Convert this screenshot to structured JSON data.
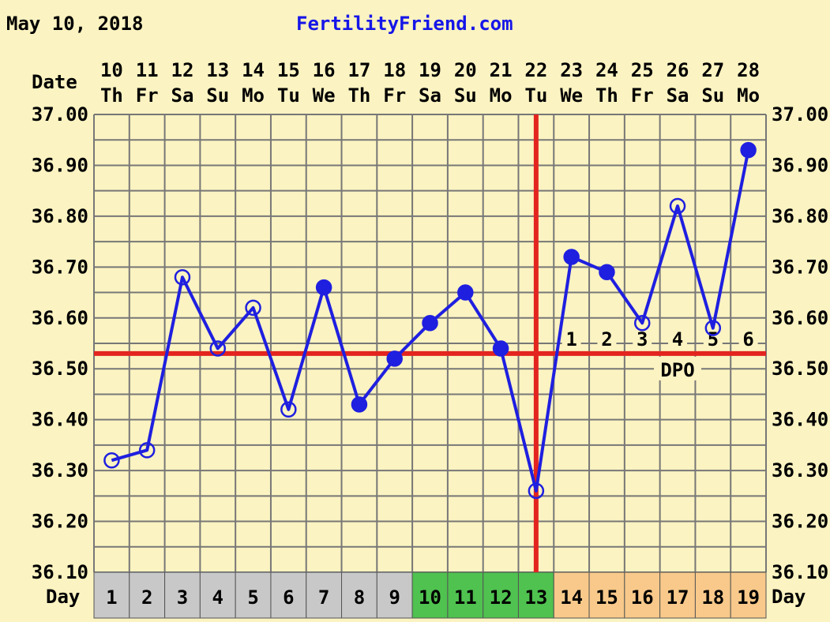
{
  "header": {
    "date": "May 10, 2018",
    "site": "FertilityFriend.com",
    "date_label": "Date",
    "day_label": "Day",
    "dpo_label": "DPO"
  },
  "colors": {
    "background": "#fbf3c1",
    "line": "#1f1fe0",
    "coverline": "#e3241f",
    "grid": "#777777",
    "site_text": "#1616e8",
    "day_gray": "#c8c8c8",
    "day_green": "#4fc24f",
    "day_orange": "#f8c98a"
  },
  "chart_data": {
    "type": "line",
    "dates": [
      "10",
      "11",
      "12",
      "13",
      "14",
      "15",
      "16",
      "17",
      "18",
      "19",
      "20",
      "21",
      "22",
      "23",
      "24",
      "25",
      "26",
      "27",
      "28"
    ],
    "weekdays": [
      "Th",
      "Fr",
      "Sa",
      "Su",
      "Mo",
      "Tu",
      "We",
      "Th",
      "Fr",
      "Sa",
      "Su",
      "Mo",
      "Tu",
      "We",
      "Th",
      "Fr",
      "Sa",
      "Su",
      "Mo"
    ],
    "cycle_days": [
      "1",
      "2",
      "3",
      "4",
      "5",
      "6",
      "7",
      "8",
      "9",
      "10",
      "11",
      "12",
      "13",
      "14",
      "15",
      "16",
      "17",
      "18",
      "19"
    ],
    "day_fill": [
      "gray",
      "gray",
      "gray",
      "gray",
      "gray",
      "gray",
      "gray",
      "gray",
      "gray",
      "green",
      "green",
      "green",
      "green",
      "orange",
      "orange",
      "orange",
      "orange",
      "orange",
      "orange"
    ],
    "series": [
      {
        "values": [
          36.32,
          36.34,
          36.68,
          36.54,
          36.62,
          36.42,
          36.66,
          36.43,
          36.52,
          36.59,
          36.65,
          36.54,
          36.26,
          36.72,
          36.69,
          36.59,
          36.82,
          36.58,
          36.93
        ],
        "markers": [
          "open",
          "open",
          "open",
          "open",
          "open",
          "open",
          "filled",
          "filled",
          "filled",
          "filled",
          "filled",
          "filled",
          "open",
          "filled",
          "filled",
          "open",
          "open",
          "open",
          "filled"
        ]
      }
    ],
    "ylim": [
      36.1,
      37.0
    ],
    "y_ticks": [
      "36.10",
      "36.20",
      "36.30",
      "36.40",
      "36.50",
      "36.60",
      "36.70",
      "36.80",
      "36.90",
      "37.00"
    ],
    "coverline": 36.53,
    "ovulation_index": 12,
    "dpo_labels": [
      "1",
      "2",
      "3",
      "4",
      "5",
      "6"
    ],
    "dpo_start_index": 13,
    "grid": true
  }
}
